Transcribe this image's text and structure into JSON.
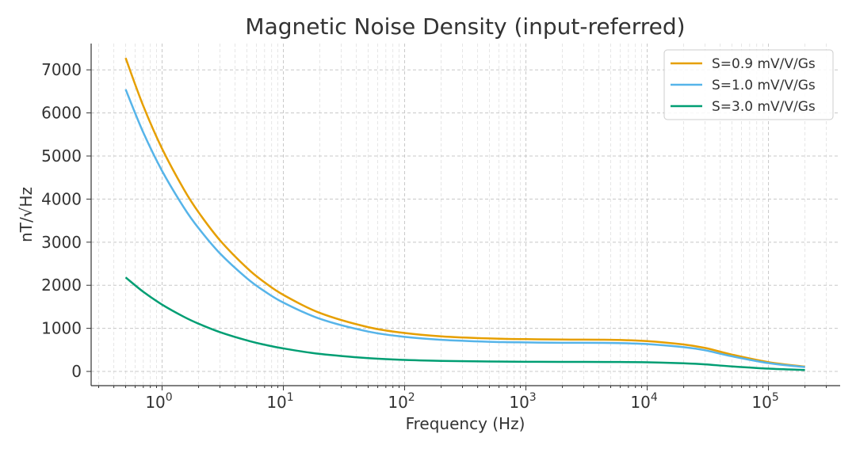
{
  "chart_data": {
    "type": "line",
    "title": "Magnetic Noise Density (input-referred)",
    "xlabel": "Frequency (Hz)",
    "ylabel": "nT/√Hz",
    "xscale": "log",
    "xlim": [
      0.26,
      390000
    ],
    "ylim": [
      -330,
      7610
    ],
    "grid": true,
    "legend_position": "top-right",
    "xticks": [
      {
        "value": 1,
        "base": "10",
        "exp": "0"
      },
      {
        "value": 10,
        "base": "10",
        "exp": "1"
      },
      {
        "value": 100,
        "base": "10",
        "exp": "2"
      },
      {
        "value": 1000,
        "base": "10",
        "exp": "3"
      },
      {
        "value": 10000,
        "base": "10",
        "exp": "4"
      },
      {
        "value": 100000,
        "base": "10",
        "exp": "5"
      }
    ],
    "yticks": [
      "0",
      "1000",
      "2000",
      "3000",
      "4000",
      "5000",
      "6000",
      "7000"
    ],
    "x": [
      0.5,
      0.7,
      1,
      1.5,
      2,
      3,
      5,
      7,
      10,
      20,
      50,
      100,
      200,
      500,
      1000,
      2000,
      5000,
      10000,
      20000,
      30000,
      50000,
      100000,
      200000
    ],
    "series": [
      {
        "name": "S=0.9 mV/V/Gs",
        "color": "#E69F00",
        "values": [
          7275,
          6161,
          5170,
          4243,
          3692,
          3044,
          2403,
          2068,
          1776,
          1358,
          1028,
          892,
          815,
          765,
          748,
          739,
          734,
          705,
          625,
          545,
          390,
          215,
          112
        ]
      },
      {
        "name": "S=1.0 mV/V/Gs",
        "color": "#56B4E9",
        "values": [
          6548,
          5545,
          4653,
          3819,
          3323,
          2740,
          2163,
          1861,
          1598,
          1222,
          925,
          803,
          734,
          689,
          673,
          665,
          661,
          635,
          563,
          491,
          351,
          194,
          101
        ]
      },
      {
        "name": "S=3.0 mV/V/Gs",
        "color": "#009E73",
        "values": [
          2183,
          1848,
          1551,
          1273,
          1108,
          913,
          721,
          620,
          533,
          407,
          308,
          268,
          245,
          230,
          224,
          222,
          220,
          212,
          188,
          164,
          117,
          65,
          34
        ]
      }
    ]
  }
}
